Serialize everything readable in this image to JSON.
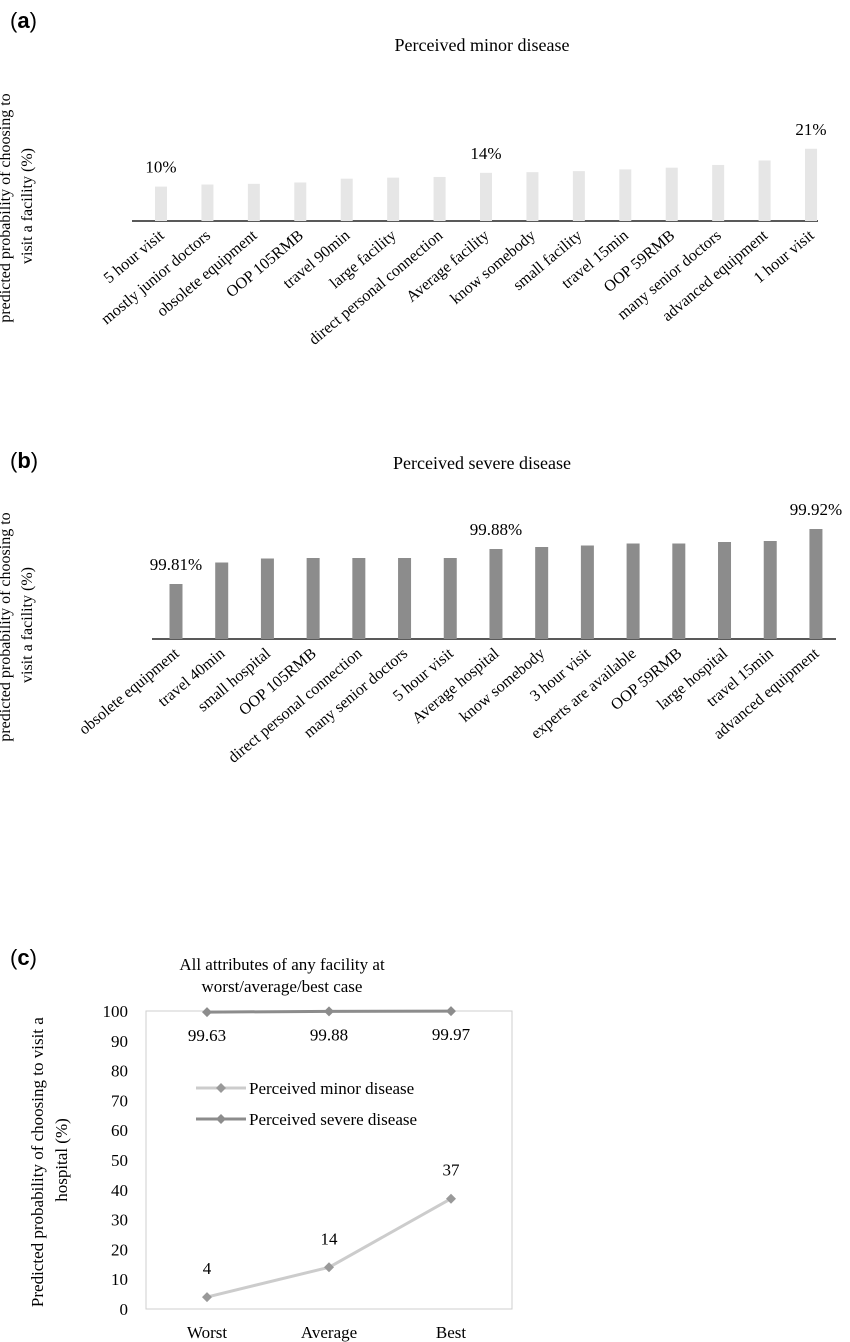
{
  "chart_data": [
    {
      "panel": "(a)",
      "type": "bar",
      "title": "Perceived minor disease",
      "ylabel": "predicted probability of choosing to visit a facility (%)",
      "ylabel_lines": [
        "predicted probability of choosing to",
        "visit a facility (%)"
      ],
      "bar_color": "#e6e6e6",
      "ylim": [
        0,
        25
      ],
      "categories": [
        "5 hour visit",
        "mostly junior doctors",
        "obsolete equipment",
        "OOP 105RMB",
        "travel 90min",
        "large facility",
        "direct personal connection",
        "Average facility",
        "know somebody",
        "small facility",
        "travel 15min",
        "OOP 59RMB",
        "many senior doctors",
        "advanced equipment",
        "1 hour visit"
      ],
      "values": [
        10,
        10.6,
        10.8,
        11.2,
        12.3,
        12.6,
        12.8,
        14,
        14.2,
        14.5,
        15,
        15.5,
        16.3,
        17.6,
        21
      ],
      "data_labels": [
        {
          "index": 0,
          "text": "10%"
        },
        {
          "index": 7,
          "text": "14%"
        },
        {
          "index": 14,
          "text": "21%"
        }
      ]
    },
    {
      "panel": "(b)",
      "type": "bar",
      "title": "Perceived severe disease",
      "ylabel": "predicted probability of choosing to visit a facility (%)",
      "ylabel_lines": [
        "predicted probability of choosing to",
        "visit a facility (%)"
      ],
      "bar_color": "#8c8c8c",
      "ylim": [
        99.7,
        99.94
      ],
      "categories": [
        "obsolete equipment",
        "travel 40min",
        "small hospital",
        "OOP 105RMB",
        "direct personal connection",
        "many senior doctors",
        "5 hour visit",
        "Average hospital",
        "know somebody",
        "3 hour visit",
        "experts are available",
        "OOP 59RMB",
        "large hospital",
        "travel 15min",
        "advanced equipment"
      ],
      "values": [
        99.81,
        99.853,
        99.861,
        99.862,
        99.862,
        99.862,
        99.862,
        99.88,
        99.884,
        99.887,
        99.891,
        99.891,
        99.894,
        99.896,
        99.92
      ],
      "data_labels": [
        {
          "index": 0,
          "text": "99.81%"
        },
        {
          "index": 7,
          "text": "99.88%"
        },
        {
          "index": 14,
          "text": "99.92%"
        }
      ]
    },
    {
      "panel": "(c)",
      "type": "line",
      "title_lines": [
        "All attributes of any facility at",
        "worst/average/best case"
      ],
      "ylabel": "Predicted probability of choosing to visit a hospital (%)",
      "ylabel_lines": [
        "Predicted probability of choosing to visit a",
        "hospital (%)"
      ],
      "categories": [
        "Worst",
        "Average",
        "Best"
      ],
      "ylim": [
        0,
        100
      ],
      "yticks": [
        0,
        10,
        20,
        30,
        40,
        50,
        60,
        70,
        80,
        90,
        100
      ],
      "legend_position": "inside-top",
      "series": [
        {
          "name": "Perceived minor disease",
          "values": [
            4,
            14,
            37
          ],
          "labels": [
            "4",
            "14",
            "37"
          ],
          "color": "#cccccc",
          "marker": "#999999"
        },
        {
          "name": "Perceived severe disease",
          "values": [
            99.63,
            99.88,
            99.97
          ],
          "labels": [
            "99.63",
            "99.88",
            "99.97"
          ],
          "color": "#8c8c8c",
          "marker": "#8c8c8c"
        }
      ]
    }
  ]
}
